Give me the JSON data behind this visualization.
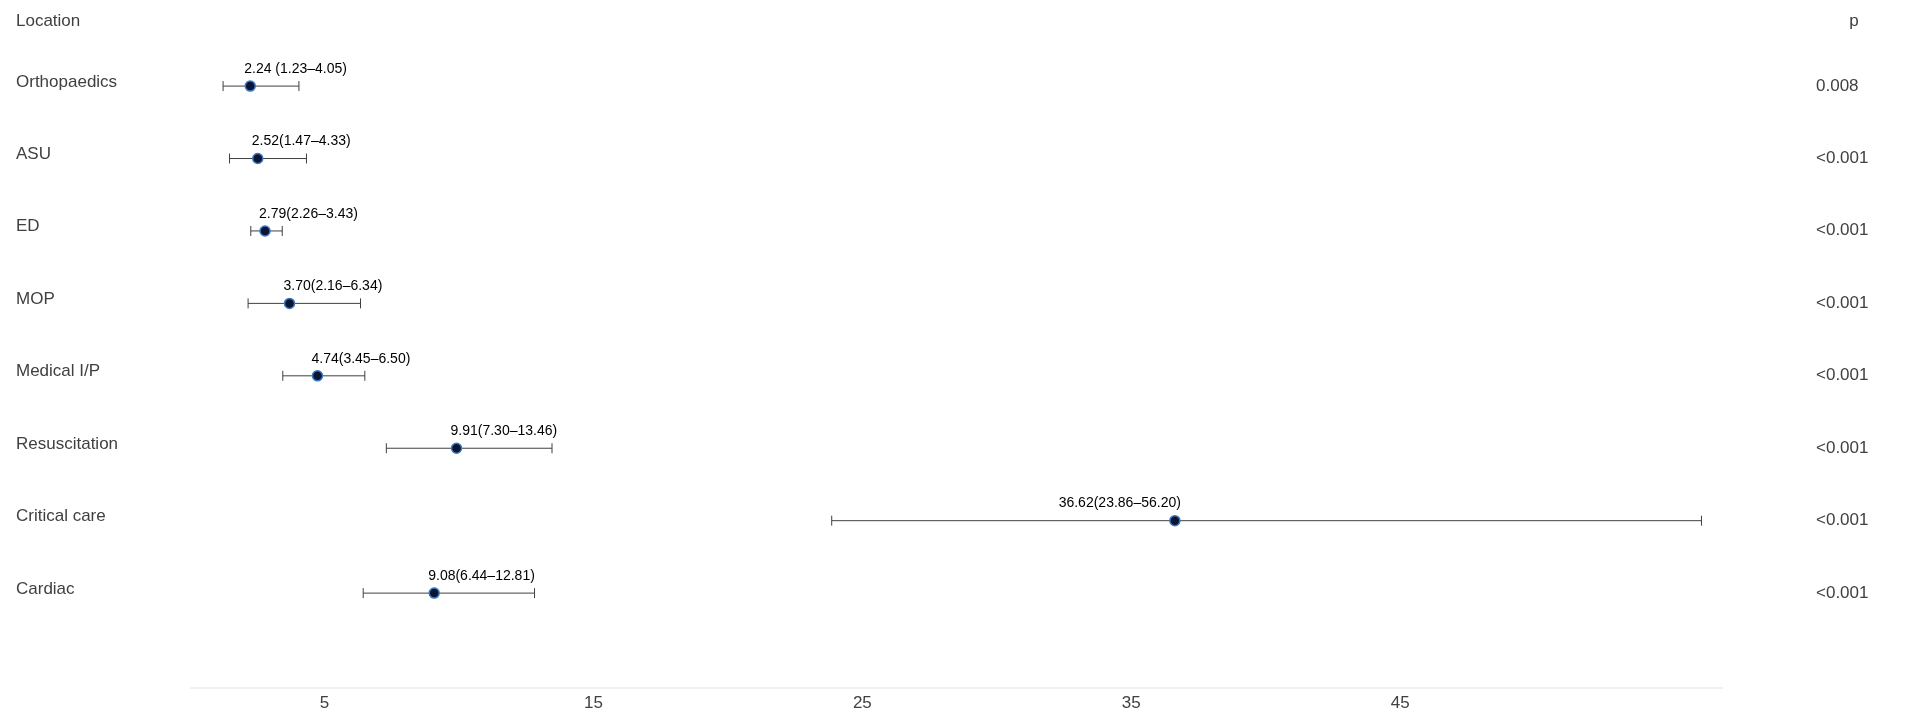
{
  "chart_data": {
    "type": "scatter",
    "orientation": "horizontal",
    "ylabel": "Location",
    "categories": [
      "Orthopaedics",
      "ASU",
      "ED",
      "MOP",
      "Medical I/P",
      "Resuscitation",
      "Critical care",
      "Cardiac"
    ],
    "values": [
      2.24,
      2.52,
      2.79,
      3.7,
      4.74,
      9.91,
      36.62,
      9.08
    ],
    "errors": [
      [
        1.23,
        4.05
      ],
      [
        1.47,
        4.33
      ],
      [
        2.26,
        3.43
      ],
      [
        2.16,
        6.34
      ],
      [
        3.45,
        6.5
      ],
      [
        7.3,
        13.46
      ],
      [
        23.86,
        56.2
      ],
      [
        6.44,
        12.81
      ]
    ],
    "value_labels": [
      "2.24 (1.23–4.05)",
      "2.52(1.47–4.33)",
      "2.79(2.26–3.43)",
      "3.70(2.16–6.34)",
      "4.74(3.45–6.50)",
      "9.91(7.30–13.46)",
      "36.62(23.86–56.20)",
      "9.08(6.44–12.81)"
    ],
    "color": "#0b1533",
    "marker": "circle",
    "grid": false,
    "xlim": [
      0,
      57
    ],
    "xticks": [
      5,
      15,
      25,
      35,
      45
    ],
    "annotations": [
      "p",
      "0.008",
      "<0.001",
      "<0.001",
      "<0.001",
      "<0.001",
      "<0.001",
      "<0.001",
      "<0.001"
    ]
  }
}
